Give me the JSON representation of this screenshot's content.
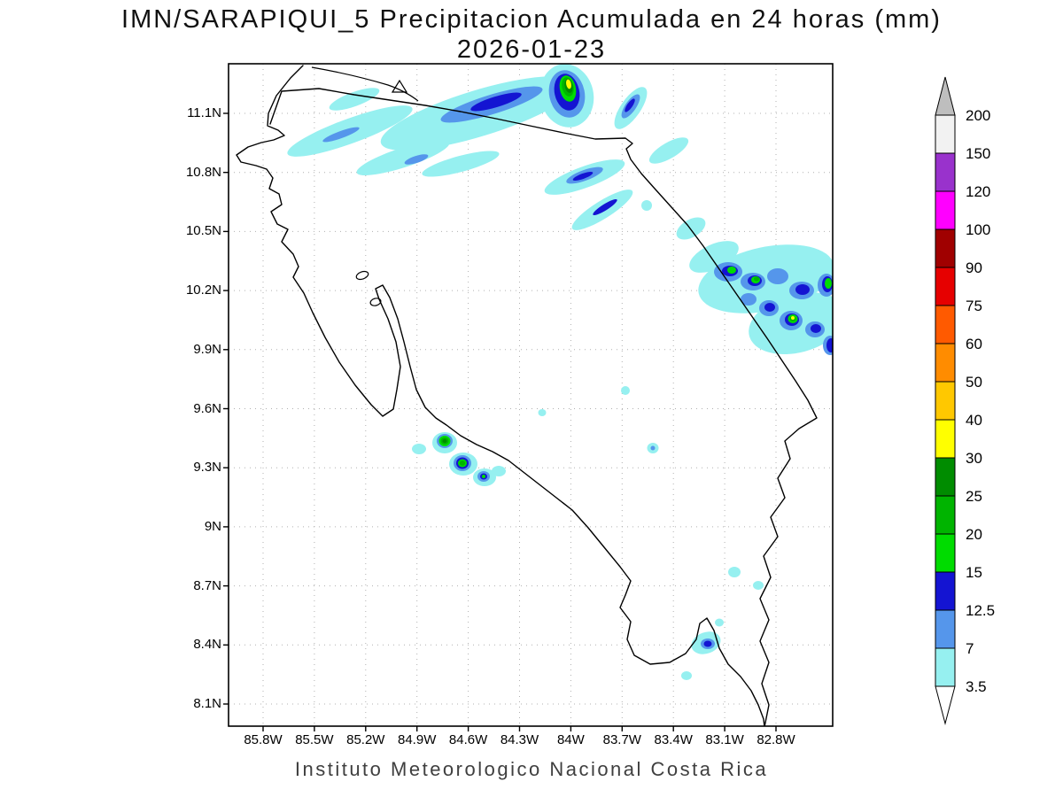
{
  "title": {
    "line1": "IMN/SARAPIQUI_5 Precipitacion Acumulada en 24 horas (mm)",
    "line2": "2026-01-23"
  },
  "footer": "Instituto Meteorologico Nacional Costa Rica",
  "map": {
    "y_ticks": [
      "11.1N",
      "10.8N",
      "10.5N",
      "10.2N",
      "9.9N",
      "9.6N",
      "9.3N",
      "9N",
      "8.7N",
      "8.4N",
      "8.1N"
    ],
    "x_ticks": [
      "85.8W",
      "85.5W",
      "85.2W",
      "84.9W",
      "84.6W",
      "84.3W",
      "84W",
      "83.7W",
      "83.4W",
      "83.1W",
      "82.8W"
    ]
  },
  "colorbar": {
    "boundary_labels": [
      "200",
      "150",
      "120",
      "100",
      "90",
      "75",
      "60",
      "50",
      "40",
      "30",
      "25",
      "20",
      "15",
      "12.5",
      "7",
      "3.5"
    ],
    "segment_colors_top_to_bottom": [
      "#F2F2F2",
      "#9932CC",
      "#FF00FF",
      "#A00000",
      "#E60000",
      "#FF5A00",
      "#FF8C00",
      "#FFC800",
      "#FFFF00",
      "#008C00",
      "#00B400",
      "#00DC00",
      "#1414D2",
      "#5596EB",
      "#96F0F0"
    ],
    "above_max_color": "#BEBEBE",
    "below_min_color": "#FFFFFF"
  },
  "chart_data": {
    "type": "heatmap",
    "title": "IMN/SARAPIQUI_5 Precipitacion Acumulada en 24 horas (mm)",
    "date": "2026-01-23",
    "units": "mm",
    "contour_levels": [
      3.5,
      7,
      12.5,
      15,
      20,
      25,
      30,
      40,
      50,
      60,
      75,
      90,
      100,
      120,
      150,
      200
    ],
    "x_tick_labels": [
      "85.8W",
      "85.5W",
      "85.2W",
      "84.9W",
      "84.6W",
      "84.3W",
      "84W",
      "83.7W",
      "83.4W",
      "83.1W",
      "82.8W"
    ],
    "y_tick_labels": [
      "11.1N",
      "10.8N",
      "10.5N",
      "10.2N",
      "9.9N",
      "9.6N",
      "9.3N",
      "9N",
      "8.7N",
      "8.4N",
      "8.1N"
    ],
    "grid": "dotted",
    "legend_position": "right-vertical",
    "features": [
      {
        "name": "northern-border-bands",
        "description": "diagonal rain streaks along the Nicaragua border, 10.9N-11.3N between 85.6W and 83.3W, mostly 3.5-15 mm with one intense cell near 84W 11.2N peaking 30-40 mm"
      },
      {
        "name": "caribbean-cluster",
        "description": "cluster of cells 9.9N-10.4N between 83.3W and 82.5W, widespread 3.5-15 mm with cores 15-30 mm and a small 30-40 mm peak near 82.8W 10.0N"
      },
      {
        "name": "central-pacific-cells",
        "description": "isolated convective cells near 9.3N-9.45N around 84.7W-84.5W, cores 15-30 mm"
      },
      {
        "name": "southern-isolated-cells",
        "description": "small spots 8.3N-9.2N around 83.5W-82.9W, mostly 3.5-7 mm with one 12.5-15 mm core near 83.2W 8.4N"
      }
    ]
  }
}
